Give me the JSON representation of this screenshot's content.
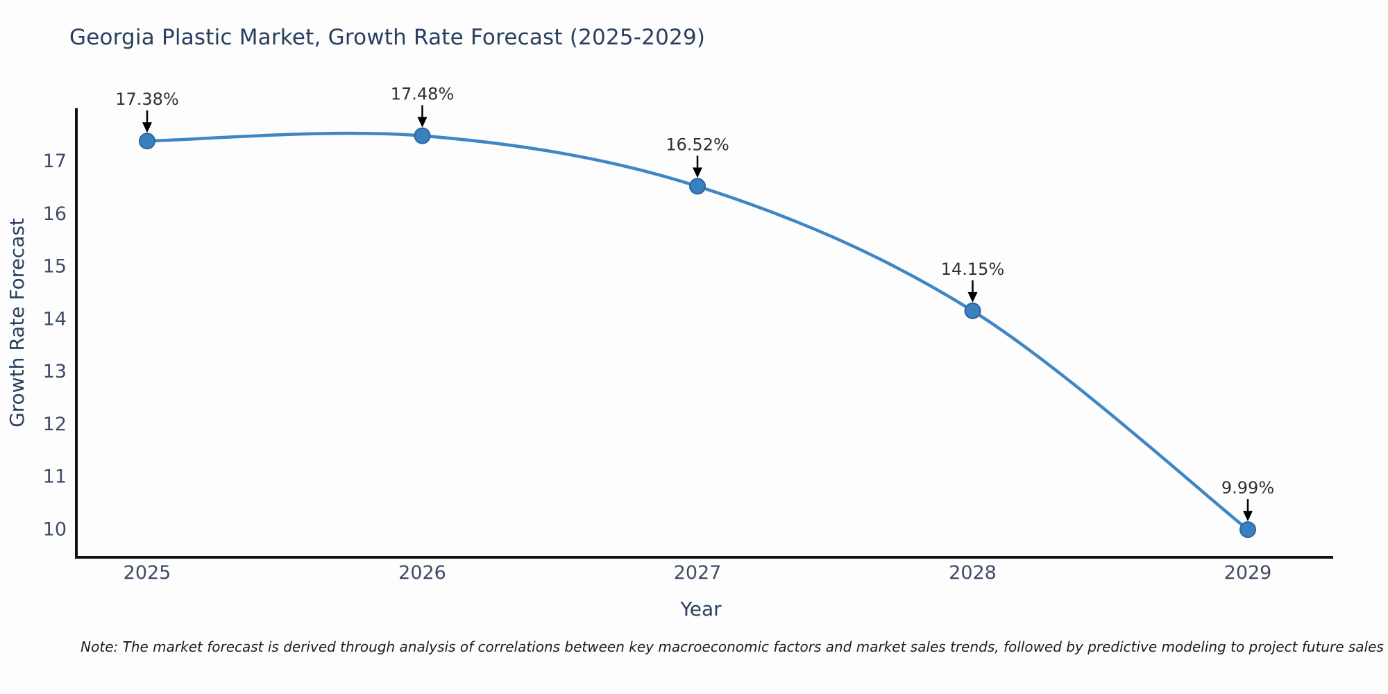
{
  "note": "Note: The market forecast is derived through analysis of correlations between key macroeconomic factors and market sales trends, followed by predictive modeling to project future sales",
  "colors": {
    "line": "#3f86c4",
    "marker_fill": "#3a7fbe",
    "marker_edge": "#2b669e",
    "spine": "#111111",
    "arrow": "#000000",
    "title_text": "#2a3f5f",
    "tick_text": "#3f4b66",
    "annotation_text": "#303030",
    "background": "#fdfdfd"
  },
  "chart_data": {
    "type": "line",
    "title": "Georgia Plastic Market, Growth Rate Forecast (2025-2029)",
    "xlabel": "Year",
    "ylabel": "Growth Rate Forecast",
    "x": [
      2025,
      2026,
      2027,
      2028,
      2029
    ],
    "y": [
      17.38,
      17.48,
      16.52,
      14.15,
      9.99
    ],
    "point_labels": [
      "17.38%",
      "17.48%",
      "16.52%",
      "14.15%",
      "9.99%"
    ],
    "yticks": [
      10,
      11,
      12,
      13,
      14,
      15,
      16,
      17
    ],
    "xticks": [
      2025,
      2026,
      2027,
      2028,
      2029
    ],
    "xlim": [
      2024.74,
      2029.31
    ],
    "ylim": [
      9.5,
      18.0
    ],
    "grid": false,
    "legend": false,
    "line_shape": "spline",
    "annotation_arrows": "down-to-point"
  }
}
